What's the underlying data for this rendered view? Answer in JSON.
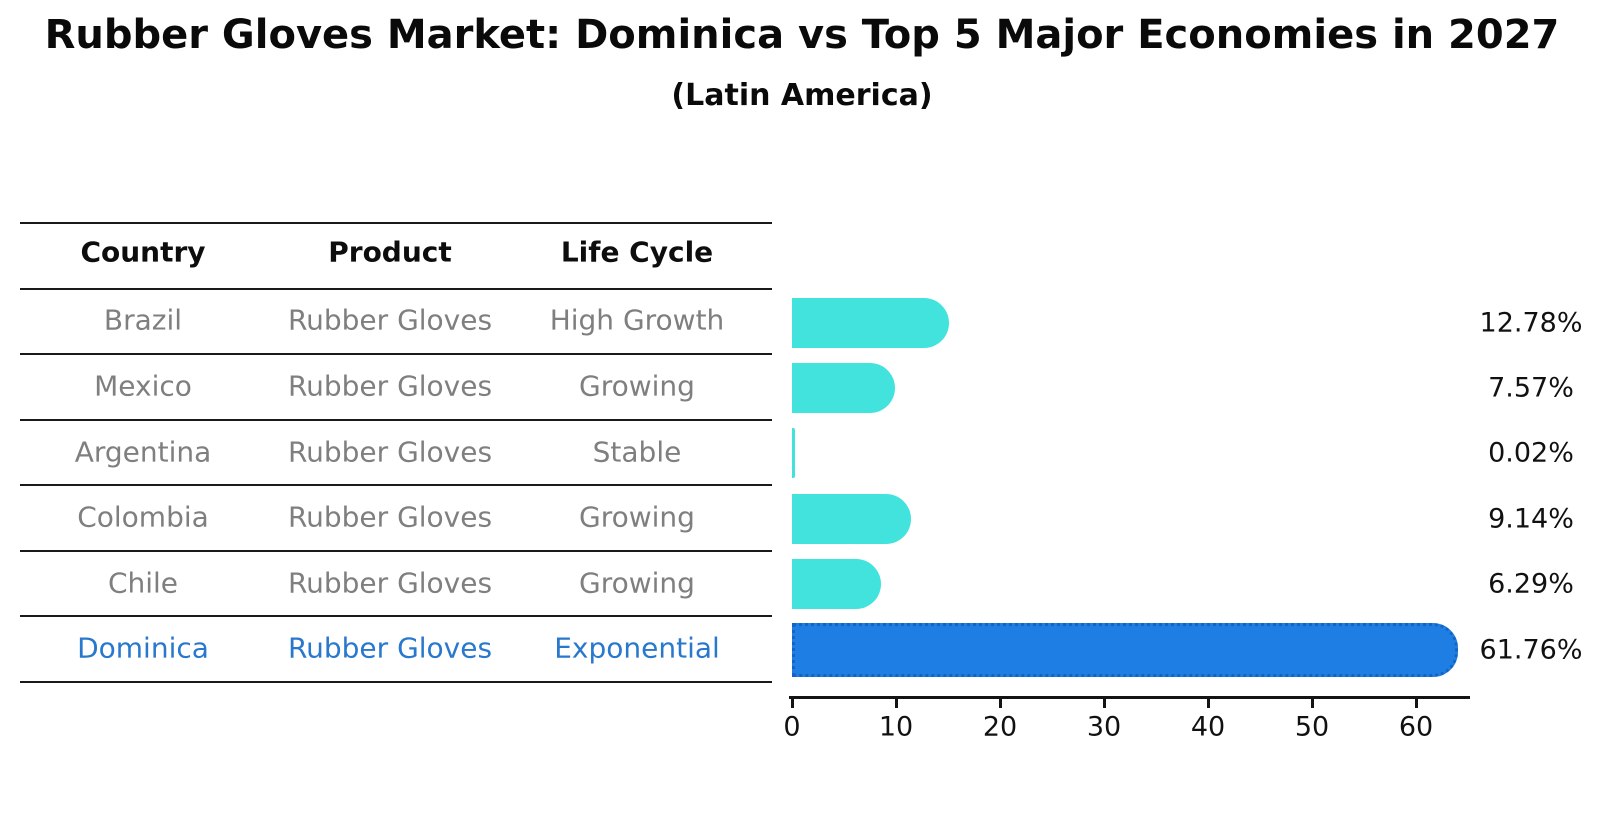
{
  "title": "Rubber Gloves Market: Dominica vs Top 5 Major Economies in 2027",
  "subtitle": "(Latin America)",
  "table": {
    "headers": [
      "Country",
      "Product",
      "Life Cycle"
    ],
    "rows": [
      {
        "country": "Brazil",
        "product": "Rubber Gloves",
        "life_cycle": "High Growth",
        "highlight": false
      },
      {
        "country": "Mexico",
        "product": "Rubber Gloves",
        "life_cycle": "Growing",
        "highlight": false
      },
      {
        "country": "Argentina",
        "product": "Rubber Gloves",
        "life_cycle": "Stable",
        "highlight": false
      },
      {
        "country": "Colombia",
        "product": "Rubber Gloves",
        "life_cycle": "Growing",
        "highlight": false
      },
      {
        "country": "Chile",
        "product": "Rubber Gloves",
        "life_cycle": "Growing",
        "highlight": false
      },
      {
        "country": "Dominica",
        "product": "Rubber Gloves",
        "life_cycle": "Exponential",
        "highlight": true
      }
    ]
  },
  "chart_data": {
    "type": "bar",
    "orientation": "horizontal",
    "title": "Rubber Gloves Market: Dominica vs Top 5 Major Economies in 2027",
    "subtitle": "(Latin America)",
    "categories": [
      "Brazil",
      "Mexico",
      "Argentina",
      "Colombia",
      "Chile",
      "Dominica"
    ],
    "values": [
      12.78,
      7.57,
      0.02,
      9.14,
      6.29,
      61.76
    ],
    "value_labels": [
      "12.78%",
      "7.57%",
      "0.02%",
      "9.14%",
      "6.29%",
      "61.76%"
    ],
    "x_ticks": [
      0,
      10,
      20,
      30,
      40,
      50,
      60
    ],
    "xlim": [
      0,
      65
    ],
    "grid": false,
    "legend": "none",
    "highlight_index": 5
  },
  "colors": {
    "bar_default": "#42e3dc",
    "bar_highlight": "#1e7ee4",
    "bar_highlight_edge": "#1565c0",
    "highlight_text": "#2878ce",
    "body_text": "#7f7f7f",
    "header_text": "#0d0d0d",
    "axis_text": "#111111"
  }
}
